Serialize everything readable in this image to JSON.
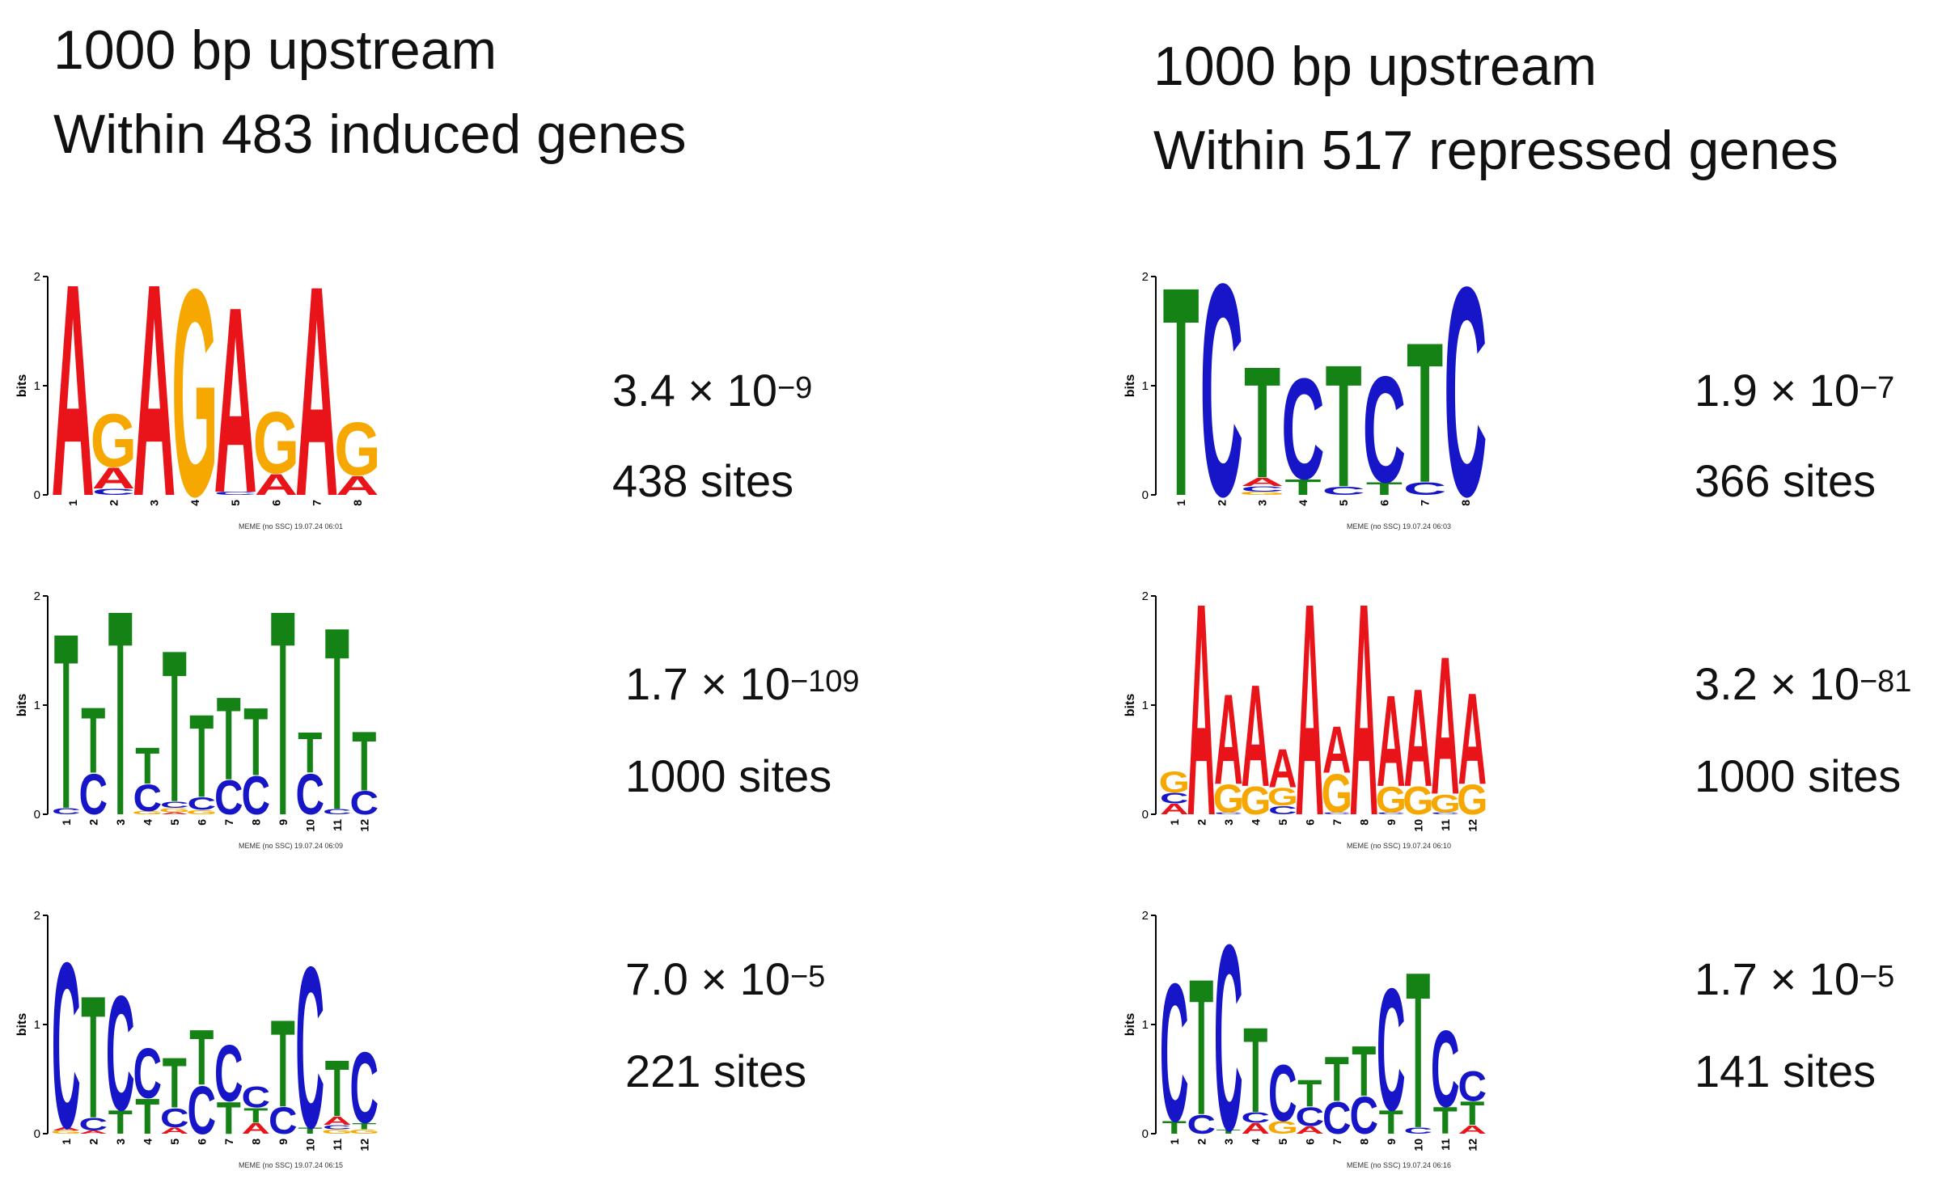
{
  "headings": {
    "left": {
      "line1": "1000 bp upstream",
      "line2": "Within 483 induced genes"
    },
    "right": {
      "line1": "1000 bp upstream",
      "line2": "Within 517 repressed genes"
    }
  },
  "colors": {
    "A": "#e8141a",
    "C": "#1616c8",
    "G": "#f7a800",
    "T": "#148214"
  },
  "axis": {
    "ylabel": "bits",
    "yticks": [
      "0",
      "1",
      "2"
    ],
    "ymax": 2
  },
  "motifs": [
    {
      "id": "induced-1",
      "mantissa": "3.4",
      "exponent": "−9",
      "sites": "438 sites",
      "footer": "MEME (no SSC) 19.07.24 06:01",
      "columns": [
        [
          [
            "A",
            2.0
          ]
        ],
        [
          [
            "C",
            0.06
          ],
          [
            "A",
            0.2
          ],
          [
            "G",
            0.5
          ]
        ],
        [
          [
            "A",
            2.0
          ]
        ],
        [
          [
            "G",
            1.95
          ]
        ],
        [
          [
            "C",
            0.03
          ],
          [
            "A",
            1.75
          ]
        ],
        [
          [
            "A",
            0.2
          ],
          [
            "G",
            0.58
          ]
        ],
        [
          [
            "A",
            1.98
          ]
        ],
        [
          [
            "A",
            0.18
          ],
          [
            "G",
            0.5
          ]
        ]
      ]
    },
    {
      "id": "repressed-1",
      "mantissa": "1.9",
      "exponent": "−7",
      "sites": "366 sites",
      "footer": "MEME (no SSC) 19.07.24 06:03",
      "columns": [
        [
          [
            "T",
            1.97
          ]
        ],
        [
          [
            "C",
            2.0
          ]
        ],
        [
          [
            "G",
            0.03
          ],
          [
            "C",
            0.05
          ],
          [
            "A",
            0.08
          ],
          [
            "T",
            1.05
          ]
        ],
        [
          [
            "T",
            0.15
          ],
          [
            "C",
            0.95
          ]
        ],
        [
          [
            "C",
            0.08
          ],
          [
            "T",
            1.15
          ]
        ],
        [
          [
            "T",
            0.12
          ],
          [
            "C",
            1.0
          ]
        ],
        [
          [
            "C",
            0.12
          ],
          [
            "T",
            1.32
          ]
        ],
        [
          [
            "C",
            1.97
          ]
        ]
      ]
    },
    {
      "id": "induced-2",
      "mantissa": "1.7",
      "exponent": "−109",
      "sites": "1000 sites",
      "footer": "MEME (no SSC) 19.07.24 06:09",
      "columns": [
        [
          [
            "C",
            0.06
          ],
          [
            "T",
            1.65
          ]
        ],
        [
          [
            "C",
            0.38
          ],
          [
            "T",
            0.62
          ]
        ],
        [
          [
            "T",
            1.93
          ]
        ],
        [
          [
            "G",
            0.03
          ],
          [
            "C",
            0.25
          ],
          [
            "T",
            0.34
          ]
        ],
        [
          [
            "A",
            0.02
          ],
          [
            "G",
            0.04
          ],
          [
            "C",
            0.06
          ],
          [
            "T",
            1.43
          ]
        ],
        [
          [
            "G",
            0.04
          ],
          [
            "C",
            0.12
          ],
          [
            "T",
            0.78
          ]
        ],
        [
          [
            "C",
            0.32
          ],
          [
            "T",
            0.78
          ]
        ],
        [
          [
            "C",
            0.36
          ],
          [
            "T",
            0.64
          ]
        ],
        [
          [
            "T",
            1.93
          ]
        ],
        [
          [
            "C",
            0.38
          ],
          [
            "T",
            0.38
          ]
        ],
        [
          [
            "C",
            0.05
          ],
          [
            "T",
            1.72
          ]
        ],
        [
          [
            "C",
            0.22
          ],
          [
            "T",
            0.56
          ]
        ]
      ]
    },
    {
      "id": "repressed-2",
      "mantissa": "3.2",
      "exponent": "−81",
      "sites": "1000 sites",
      "footer": "MEME (no SSC) 19.07.24 06:10",
      "columns": [
        [
          [
            "A",
            0.1
          ],
          [
            "C",
            0.1
          ],
          [
            "G",
            0.2
          ]
        ],
        [
          [
            "A",
            2.0
          ]
        ],
        [
          [
            "C",
            0.02
          ],
          [
            "G",
            0.26
          ],
          [
            "A",
            0.85
          ]
        ],
        [
          [
            "G",
            0.26
          ],
          [
            "A",
            0.96
          ]
        ],
        [
          [
            "C",
            0.08
          ],
          [
            "G",
            0.17
          ],
          [
            "A",
            0.36
          ]
        ],
        [
          [
            "A",
            2.0
          ]
        ],
        [
          [
            "C",
            0.02
          ],
          [
            "G",
            0.36
          ],
          [
            "A",
            0.44
          ]
        ],
        [
          [
            "A",
            2.0
          ]
        ],
        [
          [
            "C",
            0.02
          ],
          [
            "G",
            0.24
          ],
          [
            "A",
            0.86
          ]
        ],
        [
          [
            "G",
            0.26
          ],
          [
            "A",
            0.92
          ]
        ],
        [
          [
            "C",
            0.02
          ],
          [
            "G",
            0.17
          ],
          [
            "A",
            1.3
          ]
        ],
        [
          [
            "G",
            0.28
          ],
          [
            "A",
            0.86
          ]
        ]
      ]
    },
    {
      "id": "induced-3",
      "mantissa": "7.0",
      "exponent": "−5",
      "sites": "221 sites",
      "footer": "MEME (no SSC) 19.07.24 06:15",
      "columns": [
        [
          [
            "G",
            0.03
          ],
          [
            "A",
            0.03
          ],
          [
            "C",
            1.56
          ]
        ],
        [
          [
            "A",
            0.03
          ],
          [
            "C",
            0.12
          ],
          [
            "T",
            1.15
          ]
        ],
        [
          [
            "T",
            0.22
          ],
          [
            "C",
            1.08
          ]
        ],
        [
          [
            "T",
            0.33
          ],
          [
            "C",
            0.47
          ]
        ],
        [
          [
            "A",
            0.06
          ],
          [
            "C",
            0.18
          ],
          [
            "T",
            0.47
          ]
        ],
        [
          [
            "C",
            0.45
          ],
          [
            "T",
            0.52
          ]
        ],
        [
          [
            "T",
            0.3
          ],
          [
            "C",
            0.53
          ]
        ],
        [
          [
            "A",
            0.1
          ],
          [
            "T",
            0.14
          ],
          [
            "C",
            0.2
          ]
        ],
        [
          [
            "C",
            0.25
          ],
          [
            "T",
            0.82
          ]
        ],
        [
          [
            "T",
            0.06
          ],
          [
            "C",
            1.52
          ]
        ],
        [
          [
            "G",
            0.04
          ],
          [
            "C",
            0.04
          ],
          [
            "A",
            0.08
          ],
          [
            "T",
            0.53
          ]
        ],
        [
          [
            "G",
            0.04
          ],
          [
            "T",
            0.06
          ],
          [
            "C",
            0.67
          ]
        ]
      ]
    },
    {
      "id": "repressed-3",
      "mantissa": "1.7",
      "exponent": "−5",
      "sites": "141 sites",
      "footer": "MEME (no SSC) 19.07.24 06:16",
      "columns": [
        [
          [
            "T",
            0.12
          ],
          [
            "C",
            1.3
          ]
        ],
        [
          [
            "C",
            0.18
          ],
          [
            "T",
            1.28
          ]
        ],
        [
          [
            "T",
            0.04
          ],
          [
            "C",
            1.75
          ]
        ],
        [
          [
            "A",
            0.1
          ],
          [
            "C",
            0.1
          ],
          [
            "T",
            0.8
          ]
        ],
        [
          [
            "G",
            0.12
          ],
          [
            "C",
            0.53
          ]
        ],
        [
          [
            "A",
            0.07
          ],
          [
            "C",
            0.18
          ],
          [
            "T",
            0.25
          ]
        ],
        [
          [
            "C",
            0.3
          ],
          [
            "T",
            0.42
          ]
        ],
        [
          [
            "C",
            0.35
          ],
          [
            "T",
            0.47
          ]
        ],
        [
          [
            "T",
            0.22
          ],
          [
            "C",
            1.15
          ]
        ],
        [
          [
            "C",
            0.06
          ],
          [
            "T",
            1.47
          ]
        ],
        [
          [
            "T",
            0.25
          ],
          [
            "C",
            0.72
          ]
        ],
        [
          [
            "A",
            0.08
          ],
          [
            "T",
            0.22
          ],
          [
            "C",
            0.28
          ]
        ]
      ]
    }
  ]
}
